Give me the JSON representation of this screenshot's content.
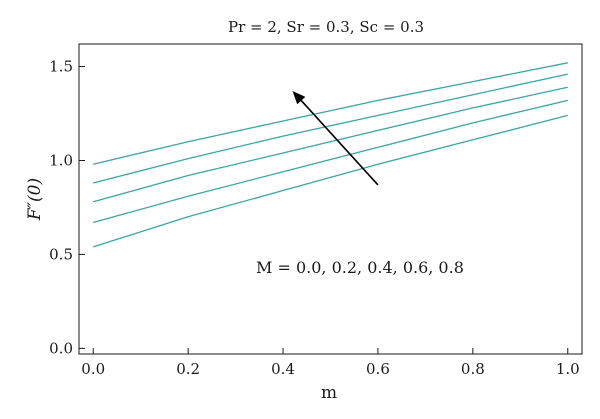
{
  "chart_data": {
    "type": "line",
    "title": "Pr = 2, Sr = 0.3, Sc = 0.3",
    "xlabel": "m",
    "ylabel": "F″(0)",
    "xlim": [
      -0.03,
      1.03
    ],
    "ylim": [
      -0.03,
      1.62
    ],
    "xticks": [
      "0.0",
      "0.2",
      "0.4",
      "0.6",
      "0.8",
      "1.0"
    ],
    "xtick_values": [
      0.0,
      0.2,
      0.4,
      0.6,
      0.8,
      1.0
    ],
    "yticks": [
      "0.0",
      "0.5",
      "1.0",
      "1.5"
    ],
    "ytick_values": [
      0.0,
      0.5,
      1.0,
      1.5
    ],
    "grid": false,
    "legend": "none",
    "line_color": "#3aa6a3",
    "x": [
      0.0,
      0.2,
      0.4,
      0.6,
      0.8,
      1.0
    ],
    "series": [
      {
        "values": [
          0.98,
          1.1,
          1.21,
          1.32,
          1.42,
          1.52
        ]
      },
      {
        "values": [
          0.88,
          1.01,
          1.13,
          1.24,
          1.35,
          1.46
        ]
      },
      {
        "values": [
          0.78,
          0.92,
          1.04,
          1.16,
          1.28,
          1.39
        ]
      },
      {
        "values": [
          0.67,
          0.81,
          0.94,
          1.07,
          1.2,
          1.32
        ]
      },
      {
        "values": [
          0.54,
          0.7,
          0.84,
          0.98,
          1.11,
          1.24
        ]
      }
    ],
    "annotation": "M = 0.0, 0.2, 0.4, 0.6, 0.8",
    "arrow": {
      "from": [
        0.6,
        0.87
      ],
      "to": [
        0.42,
        1.37
      ]
    }
  }
}
